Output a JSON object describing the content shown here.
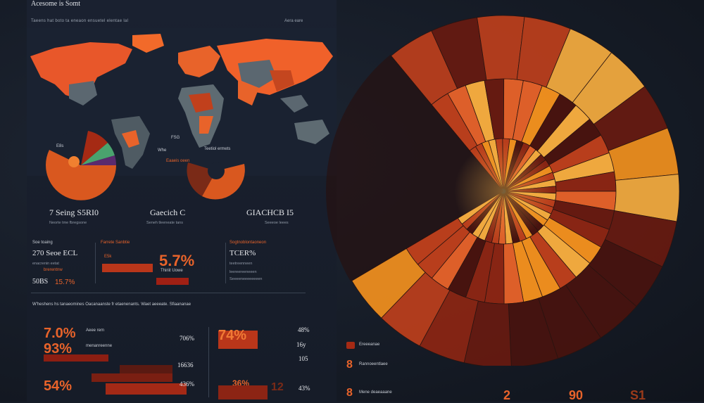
{
  "header": {
    "title": "Acesome is Somt",
    "subtitle": "Taeens hat boto ta eneaon ensuetel elentae lal",
    "subtitle_right": "Aera eare"
  },
  "map_labels": {
    "pie_label": "E8s",
    "map_label_a": "FSG",
    "map_label_b": "Whe",
    "map_label_c": "Teetiol ermets",
    "map_label_d": "Eaaeis oeen"
  },
  "kpis": [
    {
      "value": "7 Seing S5RI0",
      "caption": "Neorte tme fbregsone"
    },
    {
      "value": "Gaecich C",
      "caption": "Seneh tleeneate tans"
    },
    {
      "value": "GIACHCB I5",
      "caption": "Seeeoe leees"
    }
  ],
  "middle": {
    "left_head": "Soe toaing",
    "left_value": "270 Seoe ECL",
    "left_cap1": "enacrenin eetat",
    "left_cap2": "brerentnw",
    "left_foot_a": "50BS",
    "left_foot_b": "15.7%",
    "center_head": "Farrete Sanbtie",
    "center_small": "E5k",
    "center_big": "5.7%",
    "center_cap": "Thiriit Uowe",
    "right_head": "Sogtnoblontaoneon",
    "right_value": "TCER%",
    "right_cap1": "teetreenneen",
    "right_cap2": "leereereeneeen",
    "right_cap3": "Seeeeneeeeeeeen"
  },
  "divider_text": "W'heshens hs tanaeomines Oacanaanste fr etaenenants. Waet aeeeate. Sfiaananae",
  "bottom": {
    "row1_big": "7.0%",
    "row2_big": "93%",
    "row3_big": "54%",
    "row1_lbl": "Aeee rem",
    "row2_lbl": "menanreenne",
    "row1_val": "706%",
    "row2_val": "16636",
    "row3_val": "436%",
    "c2_big1": "74%",
    "c2_big2": "36%",
    "c2_big3": "12",
    "c2_val1": "48%",
    "c2_val2": "16y",
    "c2_val3": "105",
    "c2_val4": "43%"
  },
  "side_notes": [
    {
      "num": "8",
      "text": "Ereeeanae"
    },
    {
      "num": "8",
      "text": "Rannoeentlaee"
    },
    {
      "num": "8",
      "text": "Mene deaeaaane"
    }
  ],
  "bottom_right": [
    "2",
    "90",
    "S1"
  ],
  "chart_data": {
    "type": "pie",
    "title": "",
    "rings": 3,
    "colors": [
      "#f7931e",
      "#fbb040",
      "#e8632a",
      "#c1401c",
      "#8f2613",
      "#6a1a10",
      "#4a130e"
    ]
  }
}
